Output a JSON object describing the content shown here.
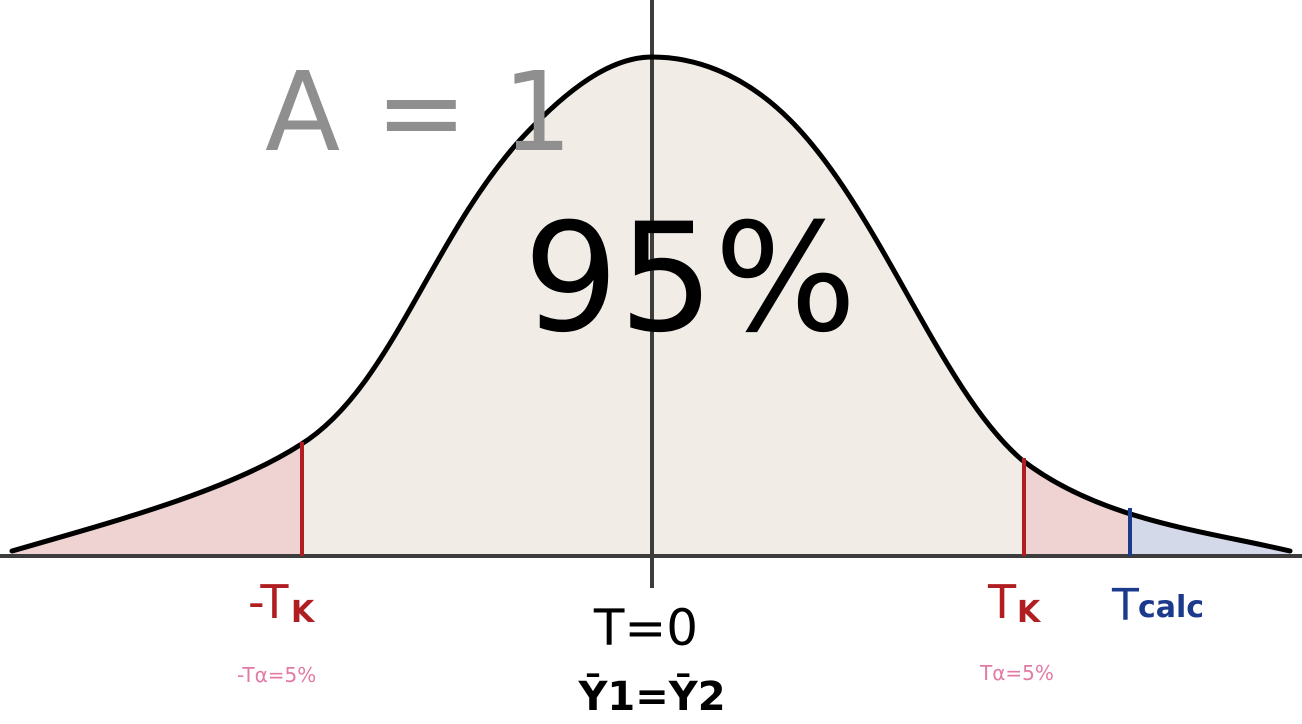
{
  "header_label": {
    "text": "A = 1",
    "color": "#8f8f8f"
  },
  "center_percent": {
    "text": "95%"
  },
  "labels": {
    "neg_critical": "-T",
    "neg_critical_sub": "K",
    "neg_alpha": "-Tα=5%",
    "center_t": "T=0",
    "center_mean_equality": "Ȳ1=Ȳ2",
    "pos_critical": "T",
    "pos_critical_sub": "K",
    "pos_alpha": "Tα=5%",
    "calc": "T",
    "calc_sub": "calc"
  },
  "colors": {
    "body_fill": "#f1ece6",
    "tail_fill": "#efd3d3",
    "calc_fill": "#d4d9ea",
    "critical_line": "#b01e22",
    "calc_line": "#1b3a8c",
    "alpha_text": "#e27aa6",
    "axis": "#3c3c3c",
    "curve": "#000000"
  }
}
